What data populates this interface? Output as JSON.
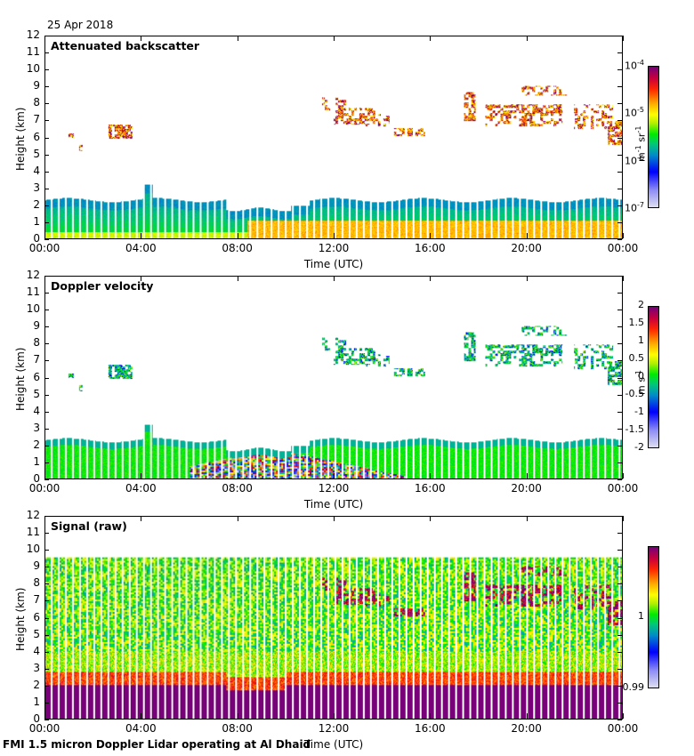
{
  "header": {
    "date": "25 Apr 2018"
  },
  "footer": {
    "caption": "FMI 1.5 micron Doppler Lidar operating at Al Dhaid"
  },
  "chart_data": [
    {
      "type": "heatmap",
      "title": "Attenuated backscatter",
      "xlabel": "Time (UTC)",
      "ylabel": "Height (km)",
      "xticks": [
        "00:00",
        "04:00",
        "08:00",
        "12:00",
        "16:00",
        "20:00",
        "00:00"
      ],
      "xrange_hours": [
        0,
        24
      ],
      "yticks": [
        0,
        1,
        2,
        3,
        4,
        5,
        6,
        7,
        8,
        9,
        10,
        11,
        12
      ],
      "ylim": [
        0,
        12
      ],
      "colorbar": {
        "scale": "log",
        "range": [
          1e-07,
          0.0001
        ],
        "ticks": [
          "10-7",
          "10-6",
          "10-5",
          "10-4"
        ],
        "tick_base": "10",
        "tick_exponents": [
          "-7",
          "-6",
          "-5",
          "-4"
        ],
        "unit": "m-1 sr-1"
      },
      "features": [
        {
          "name": "boundary layer",
          "time_hours": [
            0,
            24
          ],
          "top_km": [
            2.3,
            2.3
          ],
          "note": "top ~2.2-2.4 km, dips to ~1.7 km 08:00-10:00; high values (orange) below 1 km after 08:30"
        },
        {
          "name": "plume",
          "time_hours": [
            4.2,
            4.4
          ],
          "top_km": 3.3
        },
        {
          "name": "mid-level cloud",
          "time_hours": [
            2.6,
            3.6
          ],
          "height_km": [
            5.9,
            6.8
          ]
        },
        {
          "name": "cloud band",
          "time_hours": [
            11.5,
            15.8
          ],
          "height_km": [
            6.0,
            8.5
          ]
        },
        {
          "name": "cloud band",
          "time_hours": [
            17.4,
            21.6
          ],
          "height_km": [
            6.8,
            9.1
          ]
        },
        {
          "name": "cloud band",
          "time_hours": [
            22.0,
            24.0
          ],
          "height_km": [
            5.6,
            8.0
          ]
        }
      ]
    },
    {
      "type": "heatmap",
      "title": "Doppler velocity",
      "xlabel": "Time (UTC)",
      "ylabel": "Height (km)",
      "xticks": [
        "00:00",
        "04:00",
        "08:00",
        "12:00",
        "16:00",
        "20:00",
        "00:00"
      ],
      "xrange_hours": [
        0,
        24
      ],
      "yticks": [
        0,
        1,
        2,
        3,
        4,
        5,
        6,
        7,
        8,
        9,
        10,
        11,
        12
      ],
      "ylim": [
        0,
        12
      ],
      "colorbar": {
        "scale": "linear",
        "range": [
          -2,
          2
        ],
        "ticks": [
          "-2",
          "-1.5",
          "-1",
          "-0.5",
          "0",
          "0.5",
          "1",
          "1.5",
          "2"
        ],
        "unit": "m s-1",
        "unit_base": "m s",
        "unit_exp": "-1"
      },
      "features": [
        {
          "name": "boundary layer near zero",
          "time_hours": [
            0,
            24
          ],
          "top_km": 2.3
        },
        {
          "name": "convective mixing",
          "time_hours": [
            6,
            15
          ],
          "height_km": [
            0,
            1.8
          ],
          "values": "mixed -2..2"
        },
        {
          "name": "clouds",
          "time_hours": [
            11.5,
            24
          ],
          "height_km": [
            5.6,
            9.1
          ],
          "values": "-1..0.5"
        }
      ]
    },
    {
      "type": "heatmap",
      "title": "Signal (raw)",
      "xlabel": "Time (UTC)",
      "ylabel": "Height (km)",
      "xticks": [
        "00:00",
        "04:00",
        "08:00",
        "12:00",
        "16:00",
        "20:00",
        "00:00"
      ],
      "xrange_hours": [
        0,
        24
      ],
      "yticks": [
        0,
        1,
        2,
        3,
        4,
        5,
        6,
        7,
        8,
        9,
        10,
        11,
        12
      ],
      "ylim": [
        0,
        12
      ],
      "data_top_km": 9.6,
      "colorbar": {
        "scale": "linear",
        "range": [
          0.99,
          1.01
        ],
        "ticks": [
          "0.99",
          "1"
        ],
        "unit": ""
      },
      "features": [
        {
          "name": "saturated boundary layer",
          "time_hours": [
            0,
            24
          ],
          "top_km": 2.0
        },
        {
          "name": "cloud signal",
          "time_hours": [
            11.5,
            24
          ],
          "height_km": [
            5.8,
            8.8
          ]
        }
      ]
    }
  ]
}
